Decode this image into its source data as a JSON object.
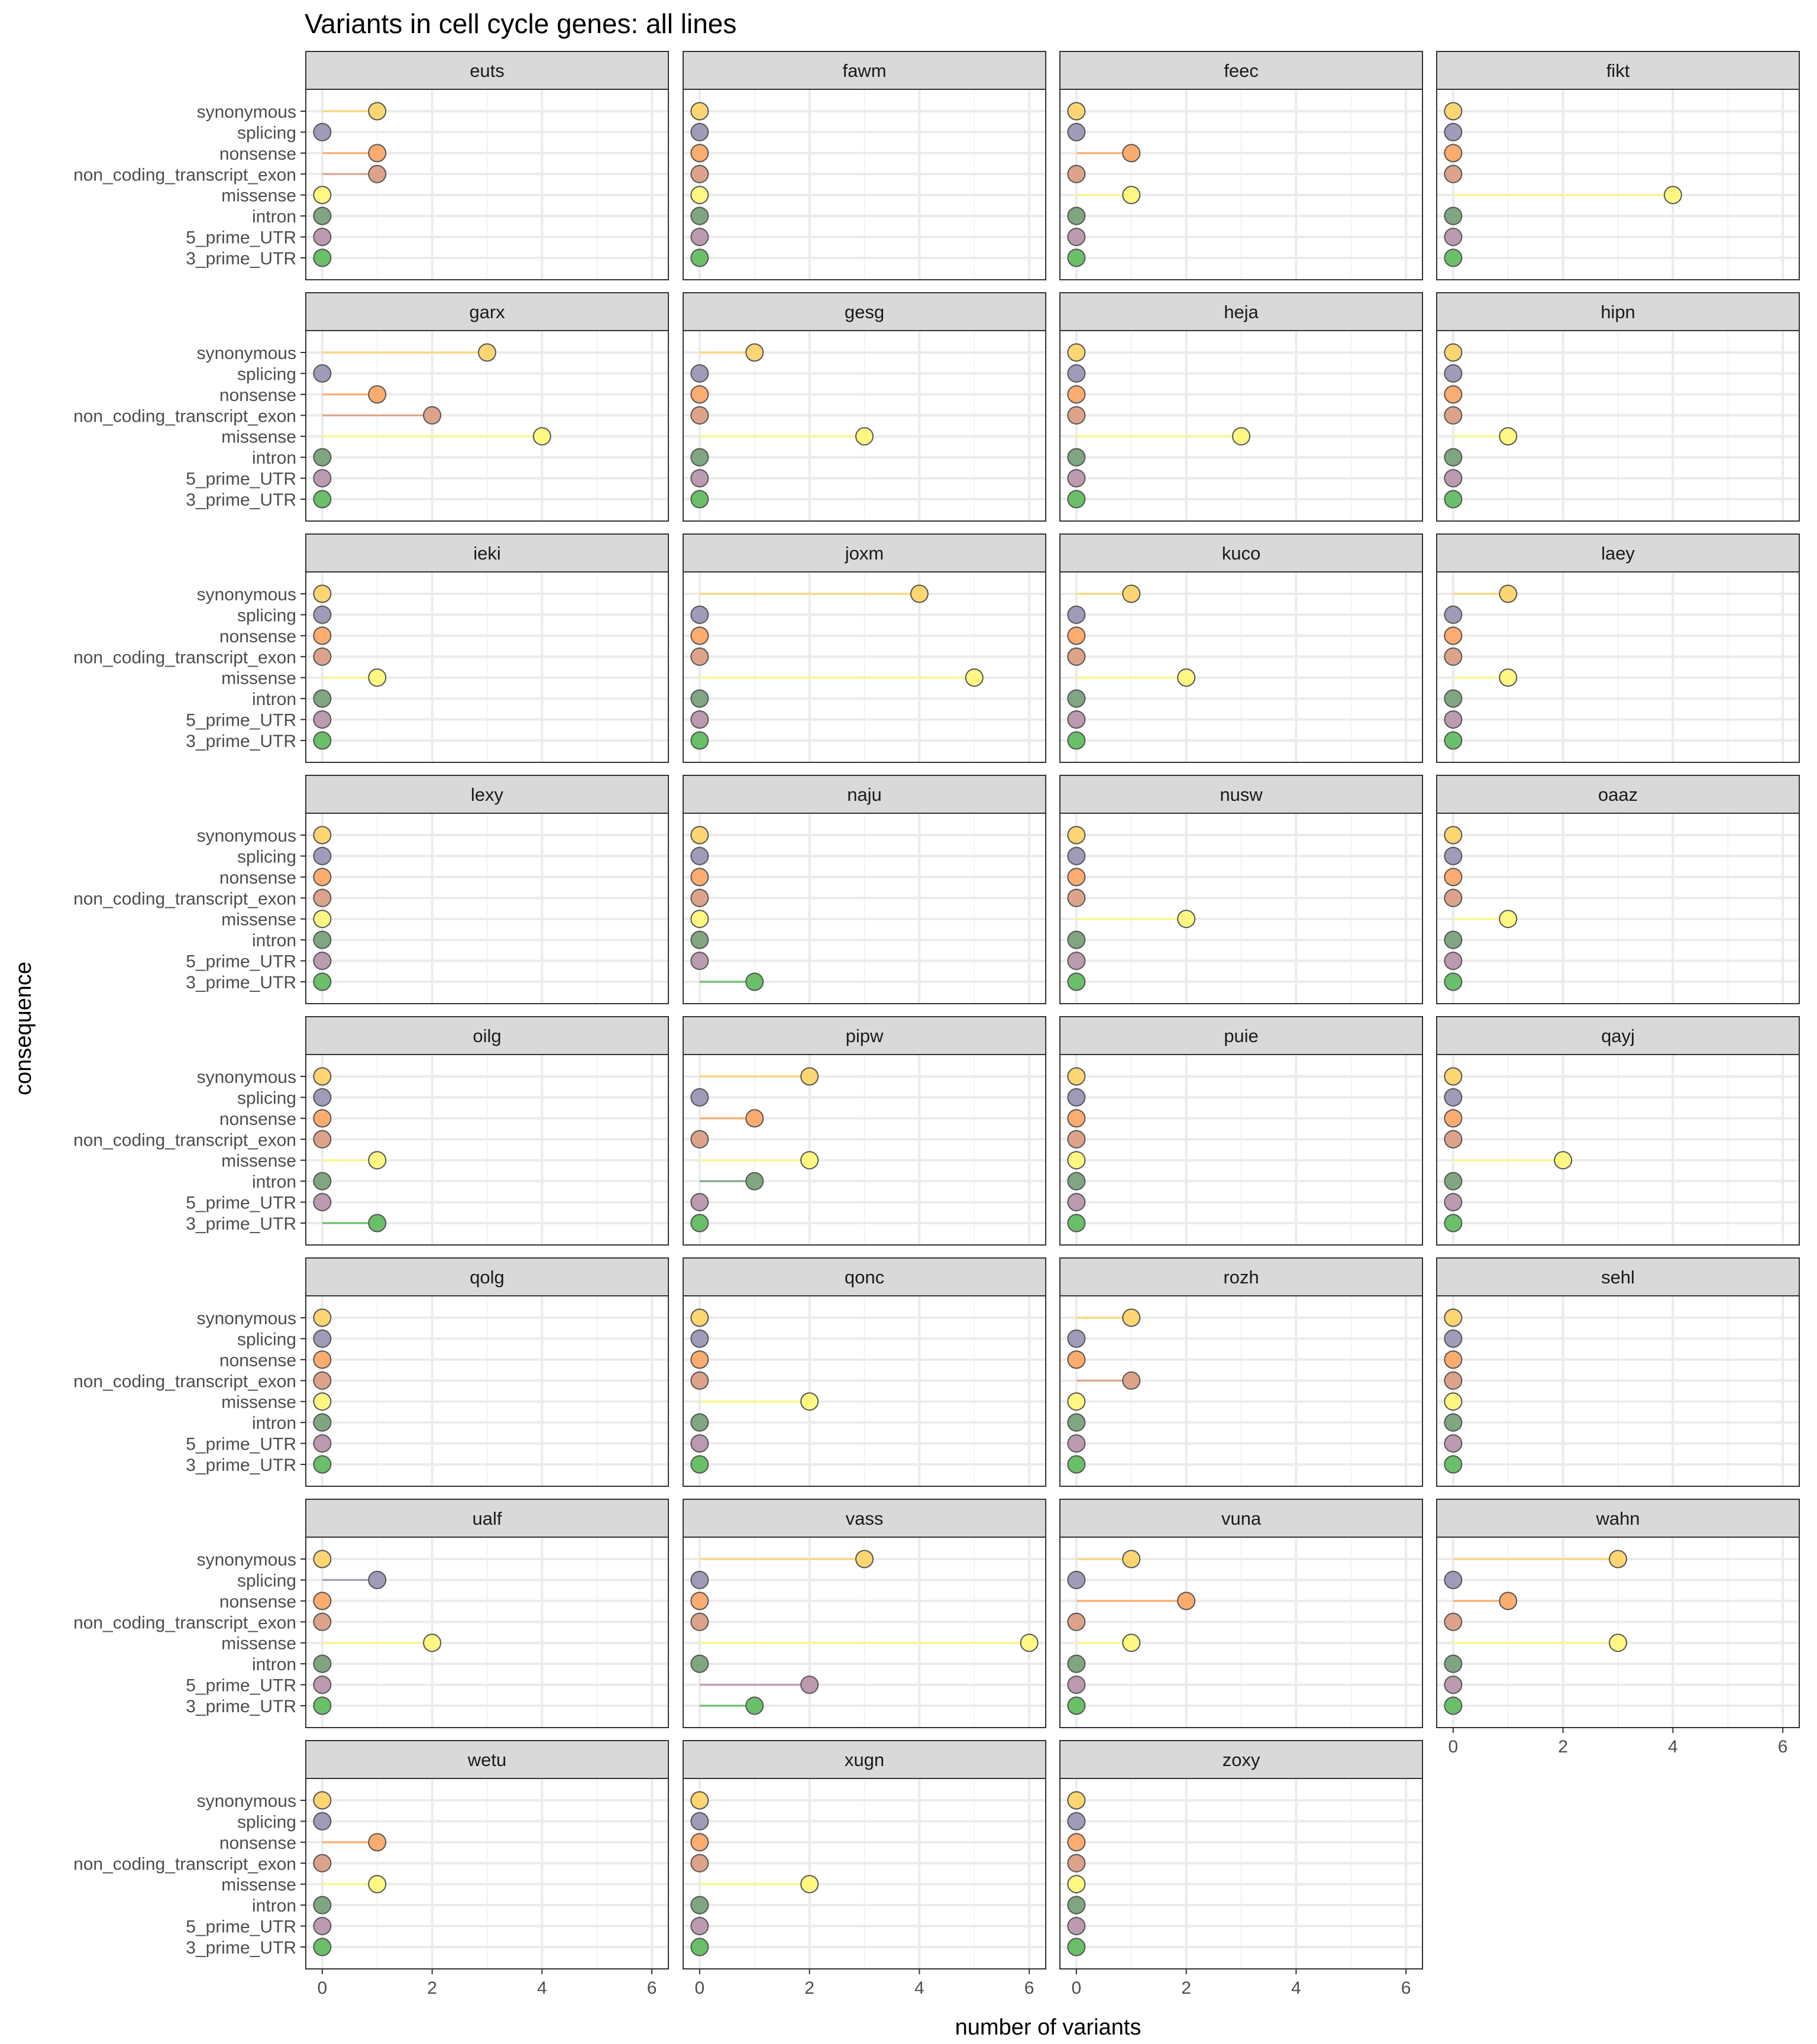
{
  "chart_data": {
    "type": "lollipop",
    "title": "Variants in cell cycle genes: all lines",
    "xlabel": "number of variants",
    "ylabel": "consequence",
    "xlim": [
      -0.3,
      6.3
    ],
    "x_ticks": [
      0,
      2,
      4,
      6
    ],
    "x_tick_labels": [
      "0",
      "2",
      "4",
      "6"
    ],
    "grid": true,
    "categories": [
      "synonymous",
      "splicing",
      "nonsense",
      "non_coding_transcript_exon",
      "missense",
      "intron",
      "5_prime_UTR",
      "3_prime_UTR"
    ],
    "category_colors": {
      "synonymous": "#FDD672",
      "splicing": "#9E9CB8",
      "nonsense": "#FCAC6E",
      "non_coding_transcript_exon": "#DDA38A",
      "missense": "#FEF782",
      "intron": "#80A681",
      "5_prime_UTR": "#BC9AB0",
      "3_prime_UTR": "#69C068"
    },
    "panels": [
      {
        "name": "euts",
        "values": [
          1,
          0,
          1,
          1,
          0,
          0,
          0,
          0
        ]
      },
      {
        "name": "fawm",
        "values": [
          0,
          0,
          0,
          0,
          0,
          0,
          0,
          0
        ]
      },
      {
        "name": "feec",
        "values": [
          0,
          0,
          1,
          0,
          1,
          0,
          0,
          0
        ]
      },
      {
        "name": "fikt",
        "values": [
          0,
          0,
          0,
          0,
          4,
          0,
          0,
          0
        ]
      },
      {
        "name": "garx",
        "values": [
          3,
          0,
          1,
          2,
          4,
          0,
          0,
          0
        ]
      },
      {
        "name": "gesg",
        "values": [
          1,
          0,
          0,
          0,
          3,
          0,
          0,
          0
        ]
      },
      {
        "name": "heja",
        "values": [
          0,
          0,
          0,
          0,
          3,
          0,
          0,
          0
        ]
      },
      {
        "name": "hipn",
        "values": [
          0,
          0,
          0,
          0,
          1,
          0,
          0,
          0
        ]
      },
      {
        "name": "ieki",
        "values": [
          0,
          0,
          0,
          0,
          1,
          0,
          0,
          0
        ]
      },
      {
        "name": "joxm",
        "values": [
          4,
          0,
          0,
          0,
          5,
          0,
          0,
          0
        ]
      },
      {
        "name": "kuco",
        "values": [
          1,
          0,
          0,
          0,
          2,
          0,
          0,
          0
        ]
      },
      {
        "name": "laey",
        "values": [
          1,
          0,
          0,
          0,
          1,
          0,
          0,
          0
        ]
      },
      {
        "name": "lexy",
        "values": [
          0,
          0,
          0,
          0,
          0,
          0,
          0,
          0
        ]
      },
      {
        "name": "naju",
        "values": [
          0,
          0,
          0,
          0,
          0,
          0,
          0,
          1
        ]
      },
      {
        "name": "nusw",
        "values": [
          0,
          0,
          0,
          0,
          2,
          0,
          0,
          0
        ]
      },
      {
        "name": "oaaz",
        "values": [
          0,
          0,
          0,
          0,
          1,
          0,
          0,
          0
        ]
      },
      {
        "name": "oilg",
        "values": [
          0,
          0,
          0,
          0,
          1,
          0,
          0,
          1
        ]
      },
      {
        "name": "pipw",
        "values": [
          2,
          0,
          1,
          0,
          2,
          1,
          0,
          0
        ]
      },
      {
        "name": "puie",
        "values": [
          0,
          0,
          0,
          0,
          0,
          0,
          0,
          0
        ]
      },
      {
        "name": "qayj",
        "values": [
          0,
          0,
          0,
          0,
          2,
          0,
          0,
          0
        ]
      },
      {
        "name": "qolg",
        "values": [
          0,
          0,
          0,
          0,
          0,
          0,
          0,
          0
        ]
      },
      {
        "name": "qonc",
        "values": [
          0,
          0,
          0,
          0,
          2,
          0,
          0,
          0
        ]
      },
      {
        "name": "rozh",
        "values": [
          1,
          0,
          0,
          1,
          0,
          0,
          0,
          0
        ]
      },
      {
        "name": "sehl",
        "values": [
          0,
          0,
          0,
          0,
          0,
          0,
          0,
          0
        ]
      },
      {
        "name": "ualf",
        "values": [
          0,
          1,
          0,
          0,
          2,
          0,
          0,
          0
        ]
      },
      {
        "name": "vass",
        "values": [
          3,
          0,
          0,
          0,
          6,
          0,
          2,
          1
        ]
      },
      {
        "name": "vuna",
        "values": [
          1,
          0,
          2,
          0,
          1,
          0,
          0,
          0
        ]
      },
      {
        "name": "wahn",
        "values": [
          3,
          0,
          1,
          0,
          3,
          0,
          0,
          0
        ]
      },
      {
        "name": "wetu",
        "values": [
          0,
          0,
          1,
          0,
          1,
          0,
          0,
          0
        ]
      },
      {
        "name": "xugn",
        "values": [
          0,
          0,
          0,
          0,
          2,
          0,
          0,
          0
        ]
      },
      {
        "name": "zoxy",
        "values": [
          0,
          0,
          0,
          0,
          0,
          0,
          0,
          0
        ]
      }
    ]
  }
}
